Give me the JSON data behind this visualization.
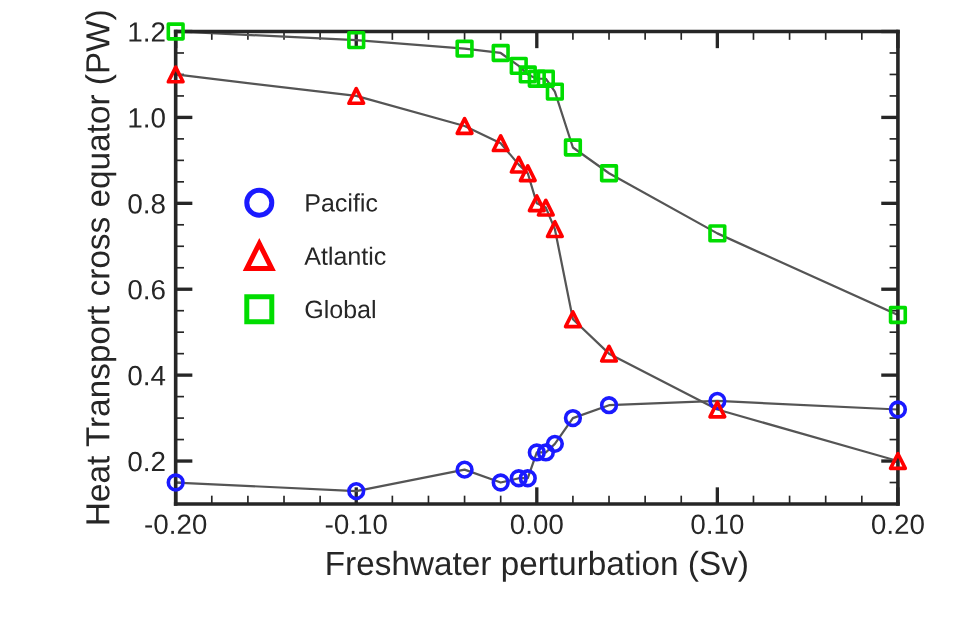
{
  "chart_data": {
    "type": "line",
    "xlabel": "Freshwater perturbation (Sv)",
    "ylabel": "Heat Transport cross equator (PW)",
    "x": [
      -0.2,
      -0.1,
      -0.04,
      -0.02,
      -0.01,
      -0.005,
      0,
      0.005,
      0.01,
      0.02,
      0.04,
      0.1,
      0.2
    ],
    "series": [
      {
        "name": "Pacific",
        "color": "#1a1aff",
        "marker": "circle",
        "values": [
          0.15,
          0.13,
          0.18,
          0.15,
          0.16,
          0.16,
          0.22,
          0.22,
          0.24,
          0.3,
          0.33,
          0.34,
          0.32
        ]
      },
      {
        "name": "Atlantic",
        "color": "#ff0000",
        "marker": "triangle",
        "values": [
          1.1,
          1.05,
          0.98,
          0.94,
          0.89,
          0.87,
          0.8,
          0.79,
          0.74,
          0.53,
          0.45,
          0.32,
          0.2
        ]
      },
      {
        "name": "Global",
        "color": "#00dd00",
        "marker": "square",
        "values": [
          1.2,
          1.18,
          1.16,
          1.15,
          1.12,
          1.1,
          1.09,
          1.09,
          1.06,
          0.93,
          0.87,
          0.73,
          0.54
        ]
      }
    ],
    "xlim": [
      -0.2,
      0.2
    ],
    "xticks": [
      {
        "value": -0.2,
        "label": "-0.20"
      },
      {
        "value": -0.1,
        "label": "-0.10"
      },
      {
        "value": 0,
        "label": "0.00"
      },
      {
        "value": 0.1,
        "label": "0.10"
      },
      {
        "value": 0.2,
        "label": "0.20"
      }
    ],
    "ylim": [
      0.1,
      1.2
    ],
    "yticks": [
      0.2,
      0.4,
      0.6,
      0.8,
      {
        "value": 1.0,
        "label": "1.0"
      },
      1.2
    ],
    "grid": false,
    "legend": "left"
  }
}
